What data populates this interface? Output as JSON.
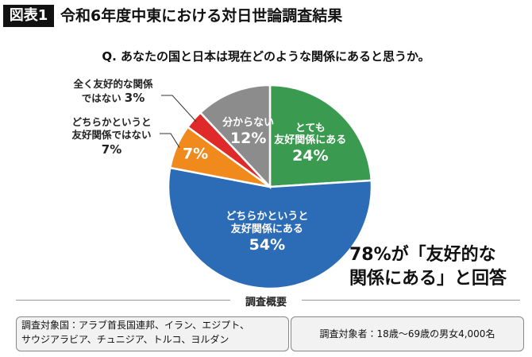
{
  "header": {
    "badge": "図表1",
    "title": "令和6年度中東における対日世論調査結果"
  },
  "chart_data": {
    "type": "pie",
    "title": "Q. あなたの国と日本は現在どのような関係にあると思うか。",
    "categories": [
      "とても\n友好関係にある",
      "どちらかというと\n友好関係にある",
      "どちらかというと\n友好関係ではない",
      "全く友好的な関係\nではない",
      "分からない"
    ],
    "values": [
      24,
      54,
      7,
      3,
      12
    ],
    "value_labels": [
      "24%",
      "54%",
      "7%",
      "3%",
      "12%"
    ],
    "colors": [
      "#3a9a4f",
      "#2c6cb6",
      "#f08a1c",
      "#e02a2a",
      "#8c8c8c"
    ],
    "annotation": "78%が「友好的な\n関係にある」と回答"
  },
  "summary": {
    "title": "調査概要",
    "countries_label": "調査対象国：",
    "countries": "アラブ首長国連邦、イラン、エジプト、\nサウジアラビア、チュニジア、トルコ、ヨルダン",
    "respondents_label": "調査対象者：",
    "respondents": "18歳〜69歳の男女4,000名"
  }
}
